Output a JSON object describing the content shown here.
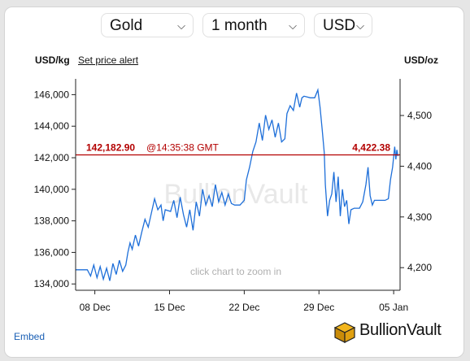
{
  "controls": {
    "metal": "Gold",
    "period": "1 month",
    "currency": "USD"
  },
  "header": {
    "left_unit": "USD/kg",
    "set_alert": "Set price alert",
    "right_unit": "USD/oz"
  },
  "footer": {
    "embed": "Embed",
    "brand": "BullionVault"
  },
  "watermark": "BullionVault",
  "zoom_hint": "click chart to zoom in",
  "current_price": {
    "left_value": "142,182.90",
    "time": "@14:35:38 GMT",
    "right_value": "4,422.38"
  },
  "colors": {
    "line": "#1e6fd9",
    "price_line": "#b30000",
    "axis": "#222222"
  },
  "chart_data": {
    "type": "line",
    "xlabel": "",
    "ylabel": "USD/kg",
    "y2label": "USD/oz",
    "x_ticks": [
      "08 Dec",
      "15 Dec",
      "22 Dec",
      "29 Dec",
      "05 Jan"
    ],
    "x_tick_days": [
      7,
      14,
      21,
      28,
      35
    ],
    "x_range_days": [
      5.2,
      35.6
    ],
    "ylim": [
      133600,
      147000
    ],
    "y_ticks": [
      134000,
      136000,
      138000,
      140000,
      142000,
      144000,
      146000
    ],
    "y2_ticks": [
      "4,200",
      "4,300",
      "4,400",
      "4,500"
    ],
    "y2_tick_values": [
      4200,
      4300,
      4400,
      4500
    ],
    "current_value_kg": 142182.9,
    "series": [
      {
        "values": [
          [
            5.2,
            134900
          ],
          [
            6.3,
            134900
          ],
          [
            6.6,
            134500
          ],
          [
            6.9,
            135200
          ],
          [
            7.2,
            134400
          ],
          [
            7.5,
            135100
          ],
          [
            7.8,
            134300
          ],
          [
            8.1,
            135000
          ],
          [
            8.4,
            134200
          ],
          [
            8.7,
            135300
          ],
          [
            9.0,
            134600
          ],
          [
            9.3,
            135500
          ],
          [
            9.6,
            134800
          ],
          [
            9.9,
            135200
          ],
          [
            10.1,
            136000
          ],
          [
            10.3,
            136600
          ],
          [
            10.5,
            136200
          ],
          [
            10.8,
            137100
          ],
          [
            11.1,
            136400
          ],
          [
            11.4,
            137300
          ],
          [
            11.7,
            138100
          ],
          [
            12.0,
            137600
          ],
          [
            12.3,
            138500
          ],
          [
            12.6,
            139400
          ],
          [
            12.9,
            138700
          ],
          [
            13.2,
            139000
          ],
          [
            13.4,
            138000
          ],
          [
            13.6,
            138700
          ],
          [
            14.1,
            138600
          ],
          [
            14.4,
            139300
          ],
          [
            14.7,
            138200
          ],
          [
            15.0,
            139500
          ],
          [
            15.3,
            138400
          ],
          [
            15.6,
            137600
          ],
          [
            15.9,
            138700
          ],
          [
            16.2,
            137400
          ],
          [
            16.5,
            139200
          ],
          [
            16.8,
            138300
          ],
          [
            17.1,
            140000
          ],
          [
            17.4,
            139000
          ],
          [
            17.7,
            139600
          ],
          [
            18.0,
            138900
          ],
          [
            18.3,
            140300
          ],
          [
            18.6,
            139200
          ],
          [
            18.9,
            139800
          ],
          [
            19.2,
            139000
          ],
          [
            19.5,
            139700
          ],
          [
            19.8,
            139100
          ],
          [
            20.1,
            139000
          ],
          [
            20.6,
            139000
          ],
          [
            21.0,
            139300
          ],
          [
            21.2,
            140600
          ],
          [
            21.5,
            141400
          ],
          [
            21.8,
            142400
          ],
          [
            22.1,
            143000
          ],
          [
            22.4,
            144200
          ],
          [
            22.7,
            143100
          ],
          [
            23.0,
            144700
          ],
          [
            23.3,
            143800
          ],
          [
            23.6,
            144400
          ],
          [
            23.9,
            143300
          ],
          [
            24.2,
            144200
          ],
          [
            24.5,
            143000
          ],
          [
            24.8,
            143200
          ],
          [
            25.0,
            144800
          ],
          [
            25.3,
            145300
          ],
          [
            25.6,
            145000
          ],
          [
            25.9,
            146100
          ],
          [
            26.2,
            145200
          ],
          [
            26.4,
            145800
          ],
          [
            26.6,
            145900
          ],
          [
            27.2,
            145800
          ],
          [
            27.6,
            145800
          ],
          [
            27.9,
            146300
          ],
          [
            28.1,
            145200
          ],
          [
            28.3,
            143800
          ],
          [
            28.5,
            142300
          ],
          [
            28.6,
            140300
          ],
          [
            28.8,
            138300
          ],
          [
            29.0,
            139300
          ],
          [
            29.2,
            139700
          ],
          [
            29.4,
            141100
          ],
          [
            29.6,
            139200
          ],
          [
            29.8,
            140800
          ],
          [
            30.0,
            138300
          ],
          [
            30.2,
            140000
          ],
          [
            30.4,
            138900
          ],
          [
            30.6,
            139300
          ],
          [
            30.8,
            137800
          ],
          [
            31.0,
            138700
          ],
          [
            31.3,
            138800
          ],
          [
            31.8,
            138800
          ],
          [
            32.1,
            139200
          ],
          [
            32.4,
            140300
          ],
          [
            32.6,
            141400
          ],
          [
            32.8,
            139600
          ],
          [
            33.0,
            139000
          ],
          [
            33.2,
            139300
          ],
          [
            33.6,
            139300
          ],
          [
            34.2,
            139300
          ],
          [
            34.5,
            139400
          ],
          [
            34.7,
            140600
          ],
          [
            34.9,
            141400
          ],
          [
            35.1,
            142700
          ],
          [
            35.2,
            141900
          ],
          [
            35.3,
            142500
          ],
          [
            35.4,
            142100
          ]
        ]
      }
    ]
  }
}
